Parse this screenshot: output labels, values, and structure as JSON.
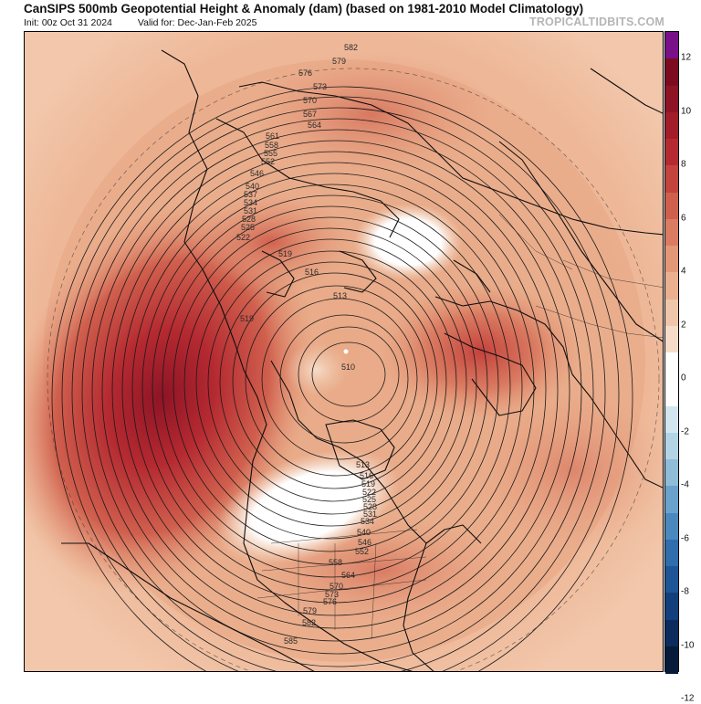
{
  "header": {
    "title": "CanSIPS 500mb Geopotential Height & Anomaly (dam) (based on 1981-2010 Model Climatology)",
    "init": "Init: 00z Oct 31 2024",
    "valid": "Valid for: Dec-Jan-Feb 2025",
    "brand": "TROPICALTIDBITS.COM"
  },
  "colorbar": {
    "ticks": [
      "12",
      "10",
      "8",
      "6",
      "4",
      "2",
      "0",
      "-2",
      "-4",
      "-6",
      "-8",
      "-10",
      "-12"
    ],
    "colors": [
      "#7a0f8a",
      "#7d0b1f",
      "#8e1425",
      "#a31c2a",
      "#b52a31",
      "#c4433d",
      "#d0604e",
      "#da7c62",
      "#e39777",
      "#eab08f",
      "#f0c6aa",
      "#f6dcc8",
      "#ffffff",
      "#ffffff",
      "#d3e6ef",
      "#b3d4e4",
      "#8fbcd8",
      "#6aa2cb",
      "#4b88bd",
      "#2f6dac",
      "#1d5597",
      "#13407c",
      "#0b2c5c",
      "#061b3a"
    ]
  },
  "contour_labels": [
    "582",
    "579",
    "576",
    "573",
    "570",
    "567",
    "564",
    "561",
    "558",
    "555",
    "552",
    "546",
    "540",
    "537",
    "534",
    "531",
    "528",
    "525",
    "522",
    "519",
    "516",
    "513",
    "519",
    "510",
    "513",
    "516",
    "519",
    "522",
    "525",
    "528",
    "531",
    "534",
    "540",
    "546",
    "552",
    "558",
    "564",
    "570",
    "573",
    "576",
    "579",
    "582",
    "585"
  ]
}
